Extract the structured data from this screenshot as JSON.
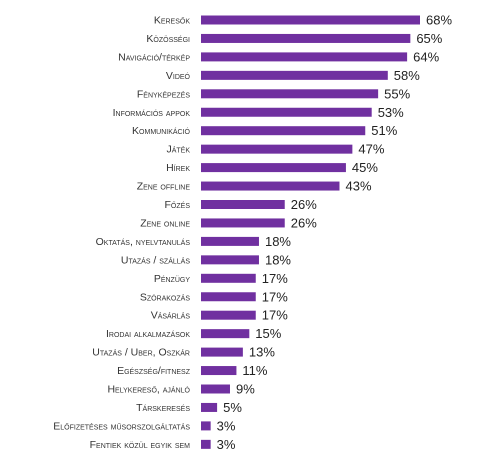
{
  "chart_data": {
    "type": "bar",
    "orientation": "horizontal",
    "categories": [
      "Keresők",
      "Közösségi",
      "Navigáció/térkép",
      "Videó",
      "Fényképezés",
      "Információs appok",
      "Kommunikáció",
      "Játék",
      "Hírek",
      "Zene offline",
      "Főzés",
      "Zene online",
      "Oktatás, nyelvtanulás",
      "Utazás / szállás",
      "Pénzügy",
      "Szórakozás",
      "Vásárlás",
      "Irodai alkalmazások",
      "Utazás / Uber, Oszkár",
      "Egészség/fitnesz",
      "Helykereső, ajánló",
      "Társkeresés",
      "Előfizetéses műsorszolgáltatás",
      "Fentiek közül egyik sem"
    ],
    "values": [
      68,
      65,
      64,
      58,
      55,
      53,
      51,
      47,
      45,
      43,
      26,
      26,
      18,
      18,
      17,
      17,
      17,
      15,
      13,
      11,
      9,
      5,
      3,
      3
    ],
    "value_suffix": "%",
    "xlim": [
      0,
      68
    ],
    "grid": false,
    "legend": "none",
    "colors": {
      "bar": "#7030a0",
      "label": "#333333",
      "value": "#222222"
    }
  }
}
